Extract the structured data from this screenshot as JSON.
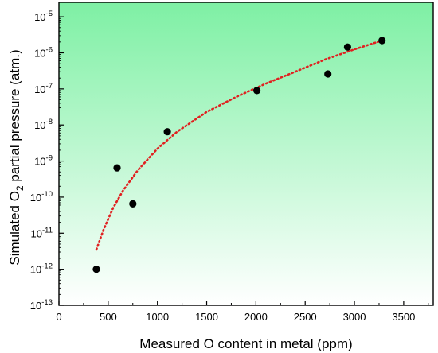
{
  "chart_data": {
    "type": "scatter",
    "xlabel": "Measured O content in metal (ppm)",
    "ylabel": {
      "prefix": "Simulated O",
      "subscript": "2",
      "suffix": " partial pressure (atm.)"
    },
    "xlim": [
      0,
      3800
    ],
    "ylim_log10": [
      -13,
      -4.6
    ],
    "y_scale": "log",
    "x_ticks": [
      "0",
      "500",
      "1000",
      "1500",
      "2000",
      "2500",
      "3000",
      "3500"
    ],
    "y_ticks": [
      {
        "base": "10",
        "exp": "-5"
      },
      {
        "base": "10",
        "exp": "-6"
      },
      {
        "base": "10",
        "exp": "-7"
      },
      {
        "base": "10",
        "exp": "-8"
      },
      {
        "base": "10",
        "exp": "-9"
      },
      {
        "base": "10",
        "exp": "-10"
      },
      {
        "base": "10",
        "exp": "-11"
      },
      {
        "base": "10",
        "exp": "-12"
      },
      {
        "base": "10",
        "exp": "-13"
      }
    ],
    "background_gradient": {
      "top": "#7ef0a4",
      "bottom": "#ffffff"
    },
    "series": [
      {
        "kind": "points",
        "color": "#000000",
        "x": [
          380,
          590,
          750,
          1100,
          2010,
          2730,
          2930,
          3280
        ],
        "y": [
          1e-12,
          6.5e-10,
          6.5e-11,
          6.5e-09,
          9e-08,
          2.6e-07,
          1.45e-06,
          2.2e-06
        ]
      },
      {
        "kind": "fit-curve",
        "style": "dotted",
        "color": "#e02020",
        "x": [
          380,
          450,
          550,
          650,
          800,
          1000,
          1200,
          1500,
          1800,
          2100,
          2400,
          2700,
          3000,
          3280
        ],
        "y": [
          3.5e-12,
          1.2e-11,
          5e-11,
          1.5e-10,
          5.5e-10,
          2.2e-09,
          6.5e-09,
          2.3e-08,
          6e-08,
          1.4e-07,
          3e-07,
          6.5e-07,
          1.25e-06,
          2.2e-06
        ]
      }
    ]
  }
}
